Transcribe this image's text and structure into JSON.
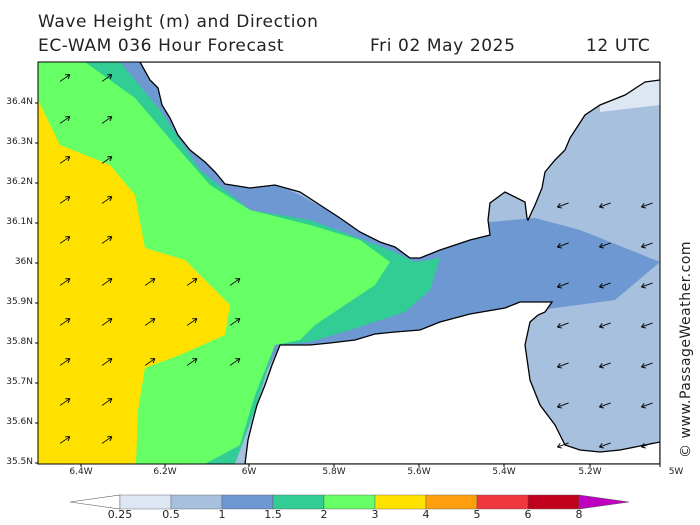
{
  "header": {
    "title": "Wave Height (m) and Direction",
    "model": "EC-WAM 036 Hour Forecast",
    "date": "Fri 02 May 2025",
    "time": "12 UTC"
  },
  "credit": "© www.PassageWeather.com",
  "axes": {
    "lat_labels": [
      "36.4N",
      "36.3N",
      "36.2N",
      "36.1N",
      "36N",
      "35.9N",
      "35.8N",
      "35.7N",
      "35.6N",
      "35.5N"
    ],
    "lon_labels": [
      "6.4W",
      "6.2W",
      "6W",
      "5.8W",
      "5.6W",
      "5.4W",
      "5.2W",
      "5W"
    ]
  },
  "colorbar": {
    "labels": [
      "0.25",
      "0.5",
      "1",
      "1.5",
      "2",
      "3",
      "4",
      "5",
      "6",
      "8"
    ],
    "colors": [
      "#dde6f3",
      "#a7c0de",
      "#6d98d1",
      "#32cc95",
      "#66ff66",
      "#ffe100",
      "#ff9f0d",
      "#f0373d",
      "#c0001c",
      "#c000c0"
    ]
  },
  "palette": {
    "land": "#ffffff",
    "coast": "#000000",
    "yellow": "#ffe100",
    "green": "#66ff66",
    "teal": "#32cc95",
    "blue": "#6d98d1",
    "lightblue": "#a7c0de",
    "palest": "#dde6f3"
  },
  "arrows": {
    "west_region_direction": "northeast",
    "east_region_direction": "southwest"
  }
}
